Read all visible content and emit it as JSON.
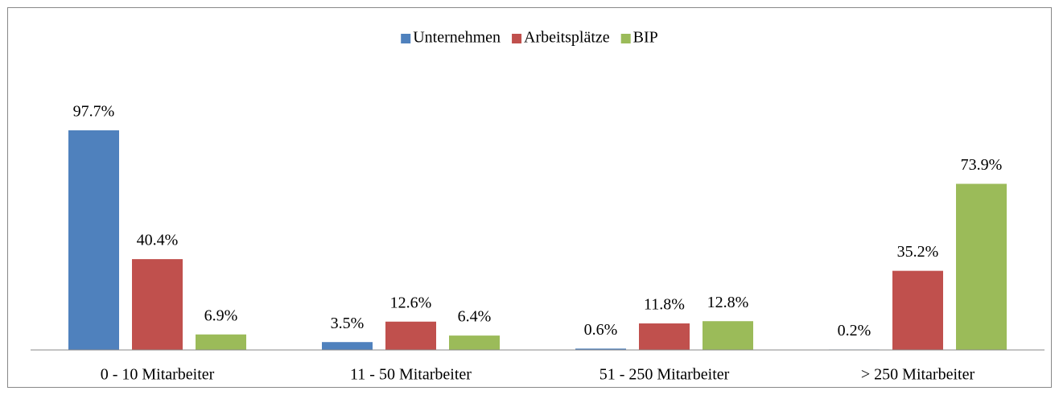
{
  "chart_data": {
    "type": "bar",
    "categories": [
      "0 - 10 Mitarbeiter",
      "11 - 50 Mitarbeiter",
      "51 - 250 Mitarbeiter",
      "> 250 Mitarbeiter"
    ],
    "series": [
      {
        "name": "Unternehmen",
        "color": "#4f81bd",
        "values": [
          97.7,
          3.5,
          0.6,
          0.2
        ],
        "value_labels": [
          "97.7%",
          "3.5%",
          "0.6%",
          "0.2%"
        ]
      },
      {
        "name": "Arbeitsplätze",
        "color": "#c0504d",
        "values": [
          40.4,
          12.6,
          11.8,
          35.2
        ],
        "value_labels": [
          "40.4%",
          "12.6%",
          "11.8%",
          "35.2%"
        ]
      },
      {
        "name": "BIP",
        "color": "#9bbb59",
        "values": [
          6.9,
          6.4,
          12.8,
          73.9
        ],
        "value_labels": [
          "6.9%",
          "6.4%",
          "12.8%",
          "73.9%"
        ]
      }
    ],
    "legend": "top"
  }
}
